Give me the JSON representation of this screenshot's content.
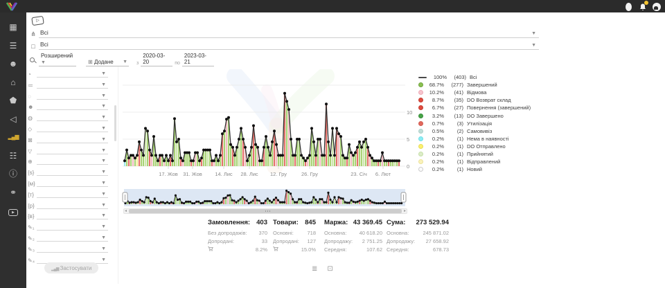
{
  "topbar": {
    "icons": [
      "user-icon",
      "bell-icon",
      "theme-icon"
    ]
  },
  "sidebar": {
    "items": [
      {
        "name": "dashboard-icon",
        "glyph": "▦",
        "active": false
      },
      {
        "name": "orders-list-icon",
        "glyph": "☰",
        "active": false
      },
      {
        "name": "customers-icon",
        "glyph": "☻",
        "active": false
      },
      {
        "name": "store-icon",
        "glyph": "⌂",
        "active": false
      },
      {
        "name": "price-tag-icon",
        "glyph": "⬟",
        "active": false
      },
      {
        "name": "marketing-megaphone-icon",
        "glyph": "◁",
        "active": false
      },
      {
        "name": "analytics-chart-icon",
        "glyph": "▂▄▆",
        "active": true
      },
      {
        "name": "settings-sliders-icon",
        "glyph": "☷",
        "active": false
      },
      {
        "name": "info-icon",
        "glyph": "ⓘ",
        "active": false
      },
      {
        "name": "partners-icon",
        "glyph": "⚭",
        "active": false
      },
      {
        "name": "video-tutorials-icon",
        "glyph": "▶",
        "active": false
      }
    ]
  },
  "filters_top": {
    "video_glyph": "▷",
    "rows": [
      {
        "icon_name": "category-tree-icon",
        "icon": "⋔",
        "value": "Всі"
      },
      {
        "icon_name": "product-box-icon",
        "icon": "□",
        "value": "Всі"
      }
    ],
    "search": {
      "mode": "Розширений",
      "date_field_icon": "⊞",
      "date_field": "Додане",
      "from_label": "з",
      "from": "2020-03-20",
      "to_label": "по",
      "to": "2023-03-21"
    }
  },
  "filter_panel": {
    "rows": [
      {
        "name": "filter-status-icon",
        "glyph": "◔"
      },
      {
        "name": "filter-list-icon",
        "glyph": "≔"
      },
      {
        "name": "filter-empty-icon",
        "glyph": "◌"
      },
      {
        "name": "filter-manager-icon",
        "glyph": "☻"
      },
      {
        "name": "filter-globe-icon",
        "glyph": "◍"
      },
      {
        "name": "filter-package-icon",
        "glyph": "◇"
      },
      {
        "name": "filter-cancel-icon",
        "glyph": "⊠"
      },
      {
        "name": "filter-funnel-icon",
        "glyph": "▽"
      },
      {
        "name": "filter-site-icon",
        "glyph": "⊕"
      },
      {
        "name": "filter-source-icon",
        "glyph": "{s}"
      },
      {
        "name": "filter-m-icon",
        "glyph": "{м}"
      },
      {
        "name": "filter-t-icon",
        "glyph": "{т}"
      },
      {
        "name": "filter-r-icon",
        "glyph": "{р}"
      },
      {
        "name": "filter-v-icon",
        "glyph": "{в}"
      },
      {
        "name": "filter-custom1-icon",
        "glyph": "✎₁"
      },
      {
        "name": "filter-custom2-icon",
        "glyph": "✎₂"
      },
      {
        "name": "filter-custom3-icon",
        "glyph": "✎₃"
      },
      {
        "name": "filter-custom4-icon",
        "glyph": "✎₄"
      }
    ],
    "apply_icon": "▂▄▆",
    "apply_label": "Застосувати"
  },
  "chart_data": {
    "type": "line+stacked-bar",
    "title": "",
    "ylabel": "",
    "xlabel": "",
    "y_ticks": [
      0,
      5,
      10
    ],
    "y_grid_values": [
      0,
      5,
      10,
      15
    ],
    "ylim": [
      0,
      15
    ],
    "x_ticks": [
      {
        "label": "17. Жов",
        "x": 68
      },
      {
        "label": "31. Жов",
        "x": 103
      },
      {
        "label": "14. Лис",
        "x": 148
      },
      {
        "label": "28. Лис",
        "x": 185
      },
      {
        "label": "12. Гру",
        "x": 227
      },
      {
        "label": "26. Гру",
        "x": 272
      },
      {
        "label": "23. Січ",
        "x": 343
      },
      {
        "label": "6. Лют",
        "x": 378
      }
    ],
    "line_color": "#2f2f2f",
    "marker_color": "#111111",
    "bar_palette": [
      "#a8d374",
      "#e4726b",
      "#f2bcc3",
      "#cfe7ad",
      "#9fe8ef",
      "#f6ef9d"
    ],
    "totals": [
      1,
      3,
      1.5,
      2,
      2,
      1.5,
      2,
      4.5,
      3,
      2,
      7,
      6.5,
      3,
      2,
      5.5,
      2,
      1,
      2,
      2,
      1,
      2,
      1,
      2,
      1,
      8.8,
      4.5,
      5,
      1.5,
      1,
      2.5,
      2.5,
      2.5,
      1,
      1,
      2.5,
      2.5,
      1,
      1.5,
      3,
      3,
      3,
      3,
      1,
      1,
      2,
      1,
      2,
      6,
      6.5,
      8.7,
      9,
      4,
      3.5,
      2,
      3.5,
      5,
      7,
      5,
      3.5,
      1,
      2,
      3.5,
      7.5,
      4,
      3.5,
      1,
      1,
      3.5,
      5.5,
      3.5,
      2,
      4.5,
      6.5,
      4,
      2,
      2,
      2,
      13.5,
      12,
      10.5,
      5,
      2,
      2,
      5,
      5,
      2,
      1.5,
      1,
      1.5,
      2,
      7,
      4.5,
      2,
      5,
      5,
      2,
      2,
      11.5,
      4.5,
      2,
      7,
      2,
      7,
      6,
      5.5,
      2,
      1.5,
      1.5,
      4,
      2.5,
      2,
      2.5,
      3.5,
      4.5,
      3.5,
      4.5,
      5,
      3.5,
      2,
      1.5,
      1,
      1,
      1,
      1,
      2.5,
      1,
      1,
      1,
      1,
      1,
      1,
      1,
      1
    ],
    "bar_colors": [
      4,
      0,
      1,
      0,
      2,
      0,
      5,
      1,
      0,
      0,
      3,
      0,
      1,
      2,
      0,
      0,
      0,
      1,
      0,
      2,
      0,
      0,
      1,
      0,
      0,
      3,
      0,
      1,
      2,
      0,
      0,
      0,
      1,
      0,
      2,
      0,
      0,
      1,
      0,
      0,
      3,
      0,
      1,
      2,
      0,
      0,
      0,
      1,
      0,
      2,
      0,
      0,
      1,
      0,
      0,
      3,
      0,
      1,
      2,
      0,
      0,
      0,
      1,
      0,
      2,
      0,
      0,
      1,
      0,
      0,
      3,
      0,
      1,
      2,
      0,
      0,
      0,
      1,
      0,
      2,
      0,
      0,
      1,
      0,
      0,
      3,
      0,
      1,
      2,
      0,
      0,
      0,
      1,
      0,
      2,
      0,
      0,
      1,
      0,
      0,
      3,
      0,
      1,
      2,
      0,
      0,
      0,
      1,
      0,
      2,
      0,
      0,
      1,
      0,
      0,
      3,
      0,
      1,
      2,
      0,
      0,
      0,
      1,
      0,
      2,
      0,
      0,
      1,
      0,
      0,
      3,
      0,
      1
    ],
    "legend": [
      {
        "type": "line",
        "color": "#4a4a4a",
        "pct": "100%",
        "count": "(403)",
        "label": "Всі"
      },
      {
        "color": "#8cc152",
        "border": "#6fa33c",
        "pct": "68.7%",
        "count": "(277)",
        "label": "Завершений"
      },
      {
        "color": "#f6c6cf",
        "border": "#eeaab6",
        "pct": "10.2%",
        "count": "(41)",
        "label": "Відмова"
      },
      {
        "color": "#df4b3f",
        "border": "#c43c31",
        "pct": "8.7%",
        "count": "(35)",
        "label": "DO Возврат склад"
      },
      {
        "color": "#df4b3f",
        "border": "#c43c31",
        "pct": "6.7%",
        "count": "(27)",
        "label": "Повернення (завершений)"
      },
      {
        "color": "#47a447",
        "border": "#388e3c",
        "pct": "3.2%",
        "count": "(13)",
        "label": "DO Завершено"
      },
      {
        "color": "#e2695e",
        "border": "#d05a4f",
        "pct": "0.7%",
        "count": "(3)",
        "label": "Утилізація"
      },
      {
        "color": "#c2ded8",
        "border": "#aecfc8",
        "pct": "0.5%",
        "count": "(2)",
        "label": "Самовивіз"
      },
      {
        "color": "#8deef5",
        "border": "#6fdde6",
        "pct": "0.2%",
        "count": "(1)",
        "label": "Нема в наявності"
      },
      {
        "color": "#fbf06f",
        "border": "#e8dc55",
        "pct": "0.2%",
        "count": "(1)",
        "label": "DO Отправлено"
      },
      {
        "color": "#dcedc8",
        "border": "#c6dfa8",
        "pct": "0.2%",
        "count": "(1)",
        "label": "Прийнятий"
      },
      {
        "color": "#faf3bb",
        "border": "#ece29a",
        "pct": "0.2%",
        "count": "(1)",
        "label": "Відправлений"
      },
      {
        "color": "#fbfbfb",
        "border": "#cccccc",
        "pct": "0.2%",
        "count": "(1)",
        "label": "Новий"
      }
    ]
  },
  "stats": {
    "columns": [
      {
        "title": "Замовлення:",
        "value": "403",
        "rows": [
          {
            "label": "Без допродажів:",
            "value": "370"
          },
          {
            "label": "Допродані:",
            "value": "33"
          },
          {
            "icon": "basket-icon",
            "label": "",
            "value": "8.2%"
          }
        ]
      },
      {
        "title": "Товари:",
        "value": "845",
        "rows": [
          {
            "label": "Основні:",
            "value": "718"
          },
          {
            "label": "Допродані:",
            "value": "127"
          },
          {
            "icon": "basket-icon",
            "label": "",
            "value": "15.0%"
          }
        ]
      },
      {
        "title": "Маржа:",
        "value": "43 369.45",
        "rows": [
          {
            "label": "Основна:",
            "value": "40 618.20"
          },
          {
            "label": "Допродажу:",
            "value": "2 751.25"
          },
          {
            "label": "Середня:",
            "value": "107.62"
          }
        ]
      },
      {
        "title": "Сума:",
        "value": "273 529.94",
        "rows": [
          {
            "label": "Основна:",
            "value": "245 871.02"
          },
          {
            "label": "Допродажу:",
            "value": "27 658.92"
          },
          {
            "label": "Середня:",
            "value": "678.73"
          }
        ]
      }
    ]
  },
  "footer_toggles": [
    {
      "name": "list-view-icon",
      "glyph": "≣"
    },
    {
      "name": "product-view-icon",
      "glyph": "⊡"
    }
  ]
}
